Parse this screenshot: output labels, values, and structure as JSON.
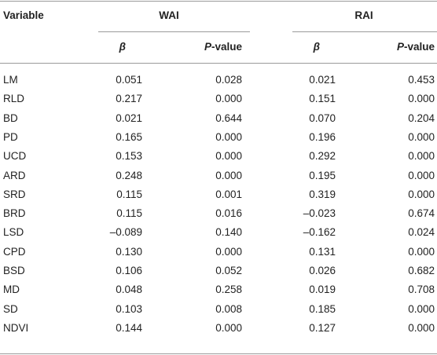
{
  "table": {
    "header": {
      "variable": "Variable",
      "groups": [
        "WAI",
        "RAI"
      ],
      "subheaders": [
        "β",
        "P-value",
        "β",
        "P-value"
      ]
    },
    "rows": [
      [
        "LM",
        "0.051",
        "0.028",
        "0.021",
        "0.453"
      ],
      [
        "RLD",
        "0.217",
        "0.000",
        "0.151",
        "0.000"
      ],
      [
        "BD",
        "0.021",
        "0.644",
        "0.070",
        "0.204"
      ],
      [
        "PD",
        "0.165",
        "0.000",
        "0.196",
        "0.000"
      ],
      [
        "UCD",
        "0.153",
        "0.000",
        "0.292",
        "0.000"
      ],
      [
        "ARD",
        "0.248",
        "0.000",
        "0.195",
        "0.000"
      ],
      [
        "SRD",
        "0.115",
        "0.001",
        "0.319",
        "0.000"
      ],
      [
        "BRD",
        "0.115",
        "0.016",
        "–0.023",
        "0.674"
      ],
      [
        "LSD",
        "–0.089",
        "0.140",
        "–0.162",
        "0.024"
      ],
      [
        "CPD",
        "0.130",
        "0.000",
        "0.131",
        "0.000"
      ],
      [
        "BSD",
        "0.106",
        "0.052",
        "0.026",
        "0.682"
      ],
      [
        "MD",
        "0.048",
        "0.258",
        "0.019",
        "0.708"
      ],
      [
        "SD",
        "0.103",
        "0.008",
        "0.185",
        "0.000"
      ],
      [
        "NDVI",
        "0.144",
        "0.000",
        "0.127",
        "0.000"
      ]
    ]
  }
}
